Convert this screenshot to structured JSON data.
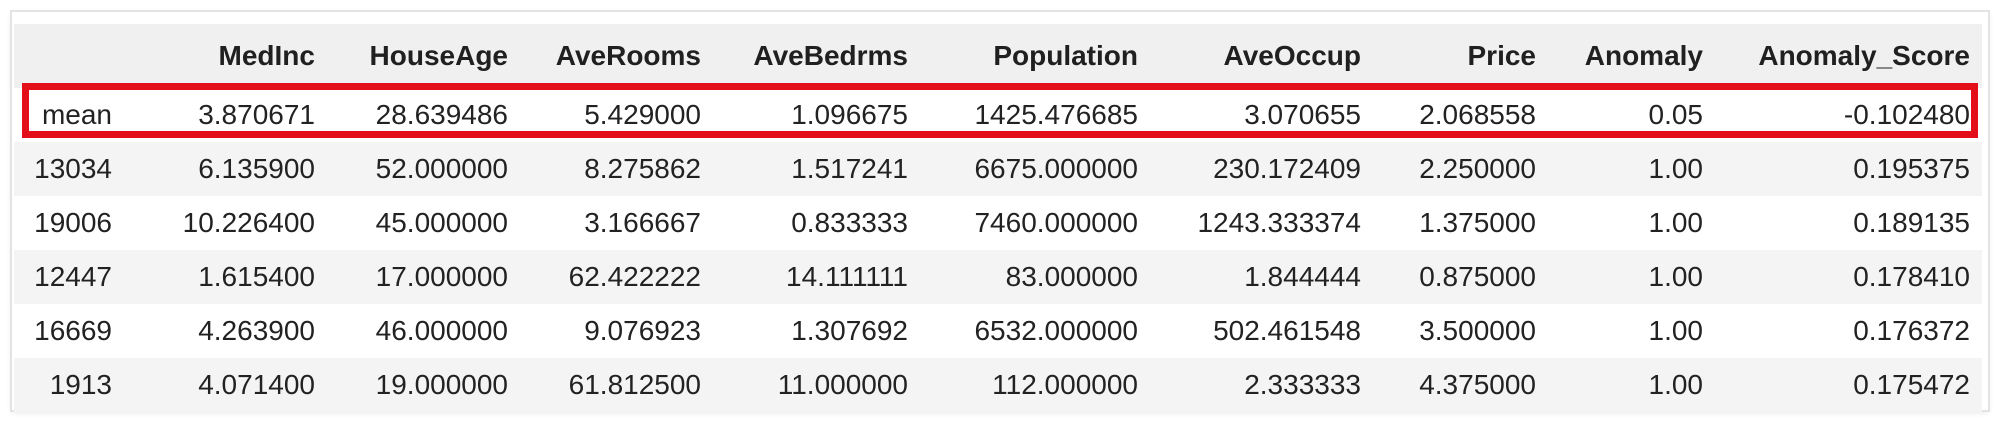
{
  "table": {
    "columns": [
      "",
      "MedInc",
      "HouseAge",
      "AveRooms",
      "AveBedrms",
      "Population",
      "AveOccup",
      "Price",
      "Anomaly",
      "Anomaly_Score"
    ],
    "rows": [
      {
        "index": "mean",
        "cells": [
          "3.870671",
          "28.639486",
          "5.429000",
          "1.096675",
          "1425.476685",
          "3.070655",
          "2.068558",
          "0.05",
          "-0.102480"
        ]
      },
      {
        "index": "13034",
        "cells": [
          "6.135900",
          "52.000000",
          "8.275862",
          "1.517241",
          "6675.000000",
          "230.172409",
          "2.250000",
          "1.00",
          "0.195375"
        ]
      },
      {
        "index": "19006",
        "cells": [
          "10.226400",
          "45.000000",
          "3.166667",
          "0.833333",
          "7460.000000",
          "1243.333374",
          "1.375000",
          "1.00",
          "0.189135"
        ]
      },
      {
        "index": "12447",
        "cells": [
          "1.615400",
          "17.000000",
          "62.422222",
          "14.111111",
          "83.000000",
          "1.844444",
          "0.875000",
          "1.00",
          "0.178410"
        ]
      },
      {
        "index": "16669",
        "cells": [
          "4.263900",
          "46.000000",
          "9.076923",
          "1.307692",
          "6532.000000",
          "502.461548",
          "3.500000",
          "1.00",
          "0.176372"
        ]
      },
      {
        "index": "1913",
        "cells": [
          "4.071400",
          "19.000000",
          "61.812500",
          "11.000000",
          "112.000000",
          "2.333333",
          "4.375000",
          "1.00",
          "0.175472"
        ]
      }
    ]
  },
  "highlight": {
    "color": "#e3101a",
    "row_index": "mean"
  }
}
